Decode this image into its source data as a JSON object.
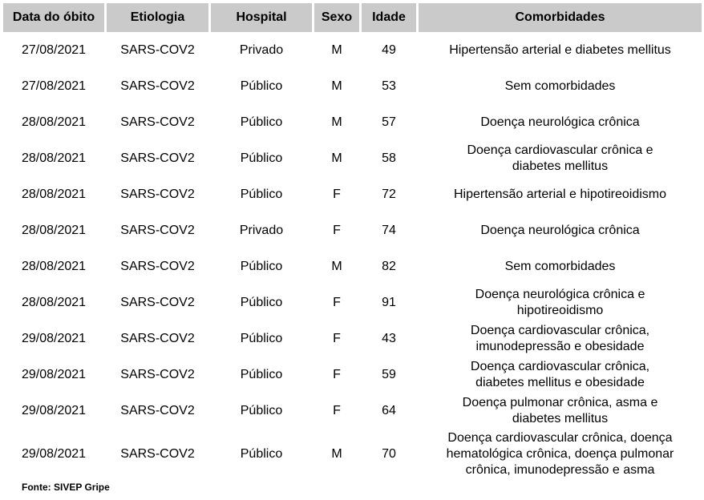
{
  "table": {
    "header": [
      "Data do óbito",
      "Etiologia",
      "Hospital",
      "Sexo",
      "Idade",
      "Comorbidades"
    ],
    "rows": [
      [
        "27/08/2021",
        "SARS-COV2",
        "Privado",
        "M",
        "49",
        [
          "Hipertensão arterial e diabetes mellitus"
        ]
      ],
      [
        "27/08/2021",
        "SARS-COV2",
        "Público",
        "M",
        "53",
        [
          "Sem comorbidades"
        ]
      ],
      [
        "28/08/2021",
        "SARS-COV2",
        "Público",
        "M",
        "57",
        [
          "Doença neurológica crônica"
        ]
      ],
      [
        "28/08/2021",
        "SARS-COV2",
        "Público",
        "M",
        "58",
        [
          "Doença cardiovascular crônica e",
          "diabetes mellitus"
        ]
      ],
      [
        "28/08/2021",
        "SARS-COV2",
        "Público",
        "F",
        "72",
        [
          "Hipertensão arterial e hipotireoidismo"
        ]
      ],
      [
        "28/08/2021",
        "SARS-COV2",
        "Privado",
        "F",
        "74",
        [
          "Doença neurológica crônica"
        ]
      ],
      [
        "28/08/2021",
        "SARS-COV2",
        "Público",
        "M",
        "82",
        [
          "Sem comorbidades"
        ]
      ],
      [
        "28/08/2021",
        "SARS-COV2",
        "Público",
        "F",
        "91",
        [
          "Doença neurológica crônica e",
          "hipotireoidismo"
        ]
      ],
      [
        "29/08/2021",
        "SARS-COV2",
        "Público",
        "F",
        "43",
        [
          "Doença cardiovascular crônica,",
          "imunodepressão e obesidade"
        ]
      ],
      [
        "29/08/2021",
        "SARS-COV2",
        "Público",
        "F",
        "59",
        [
          "Doença cardiovascular crônica,",
          "diabetes mellitus e obesidade"
        ]
      ],
      [
        "29/08/2021",
        "SARS-COV2",
        "Público",
        "F",
        "64",
        [
          "Doença pulmonar crônica, asma e",
          "diabetes mellitus"
        ]
      ],
      [
        "29/08/2021",
        "SARS-COV2",
        "Público",
        "M",
        "70",
        [
          "Doença cardiovascular crônica, doença",
          "hematológica crônica, doença pulmonar",
          "crônica, imunodepressão e asma"
        ]
      ]
    ]
  },
  "footnote": "Fonte: SIVEP Gripe"
}
